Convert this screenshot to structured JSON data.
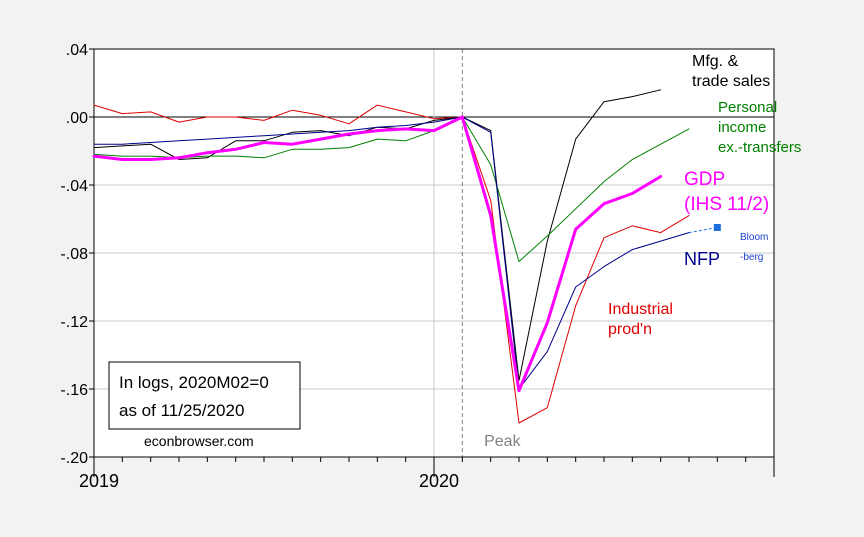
{
  "chart_data": {
    "type": "line",
    "x_unit": "month",
    "xlim": [
      "2019-01",
      "2020-12"
    ],
    "ylim": [
      -0.2,
      0.04
    ],
    "yticks": [
      0.04,
      0.0,
      -0.04,
      -0.08,
      -0.12,
      -0.16,
      -0.2
    ],
    "ytick_labels": [
      ".04",
      ".00",
      "-.04",
      "-.08",
      "-.12",
      "-.16",
      "-.20"
    ],
    "xtick_labels": [
      {
        "label": "2019",
        "at": "2019-01"
      },
      {
        "label": "2020",
        "at": "2020-01"
      }
    ],
    "grid": true,
    "peak_marker": {
      "at": "2020-02",
      "label": "Peak"
    },
    "series": [
      {
        "name_lines": [
          "Mfg. &",
          "trade sales"
        ],
        "color": "#000000",
        "width": 1,
        "x": [
          "2019-01",
          "2019-02",
          "2019-03",
          "2019-04",
          "2019-05",
          "2019-06",
          "2019-07",
          "2019-08",
          "2019-09",
          "2019-10",
          "2019-11",
          "2019-12",
          "2020-01",
          "2020-02",
          "2020-03",
          "2020-04",
          "2020-05",
          "2020-06",
          "2020-07",
          "2020-08",
          "2020-09"
        ],
        "values": [
          -0.018,
          -0.017,
          -0.016,
          -0.025,
          -0.024,
          -0.014,
          -0.014,
          -0.009,
          -0.008,
          -0.011,
          -0.006,
          -0.007,
          -0.002,
          0.0,
          -0.008,
          -0.155,
          -0.073,
          -0.013,
          0.009,
          0.012,
          0.016
        ]
      },
      {
        "name_lines": [
          "Personal",
          "income",
          "ex.-transfers"
        ],
        "color": "#008000",
        "width": 1,
        "x": [
          "2019-01",
          "2019-02",
          "2019-03",
          "2019-04",
          "2019-05",
          "2019-06",
          "2019-07",
          "2019-08",
          "2019-09",
          "2019-10",
          "2019-11",
          "2019-12",
          "2020-01",
          "2020-02",
          "2020-03",
          "2020-04",
          "2020-05",
          "2020-06",
          "2020-07",
          "2020-08",
          "2020-09",
          "2020-10"
        ],
        "values": [
          -0.022,
          -0.023,
          -0.023,
          -0.024,
          -0.023,
          -0.023,
          -0.024,
          -0.019,
          -0.019,
          -0.018,
          -0.013,
          -0.014,
          -0.008,
          0.0,
          -0.028,
          -0.085,
          -0.07,
          -0.054,
          -0.038,
          -0.025,
          -0.016,
          -0.007
        ]
      },
      {
        "name_lines": [
          "GDP",
          "(IHS 11/2)"
        ],
        "color": "#ff00ff",
        "width": 3,
        "x": [
          "2019-01",
          "2019-02",
          "2019-03",
          "2019-04",
          "2019-05",
          "2019-06",
          "2019-07",
          "2019-08",
          "2019-09",
          "2019-10",
          "2019-11",
          "2019-12",
          "2020-01",
          "2020-02",
          "2020-03",
          "2020-04",
          "2020-05",
          "2020-06",
          "2020-07",
          "2020-08",
          "2020-09"
        ],
        "values": [
          -0.023,
          -0.025,
          -0.025,
          -0.024,
          -0.021,
          -0.019,
          -0.015,
          -0.016,
          -0.013,
          -0.01,
          -0.008,
          -0.007,
          -0.008,
          0.0,
          -0.058,
          -0.161,
          -0.121,
          -0.066,
          -0.051,
          -0.045,
          -0.035
        ]
      },
      {
        "name_lines": [
          "NFP"
        ],
        "color": "#00008b",
        "width": 1,
        "x": [
          "2019-01",
          "2019-02",
          "2019-03",
          "2019-04",
          "2019-05",
          "2019-06",
          "2019-07",
          "2019-08",
          "2019-09",
          "2019-10",
          "2019-11",
          "2019-12",
          "2020-01",
          "2020-02",
          "2020-03",
          "2020-04",
          "2020-05",
          "2020-06",
          "2020-07",
          "2020-08",
          "2020-09",
          "2020-10"
        ],
        "values": [
          -0.016,
          -0.016,
          -0.015,
          -0.014,
          -0.013,
          -0.012,
          -0.011,
          -0.01,
          -0.009,
          -0.008,
          -0.006,
          -0.005,
          -0.003,
          0.0,
          -0.009,
          -0.16,
          -0.138,
          -0.1,
          -0.088,
          -0.078,
          -0.073,
          -0.068
        ]
      },
      {
        "name_lines": [
          "Industrial",
          "prod'n"
        ],
        "color": "#e00000",
        "width": 1,
        "x": [
          "2019-01",
          "2019-02",
          "2019-03",
          "2019-04",
          "2019-05",
          "2019-06",
          "2019-07",
          "2019-08",
          "2019-09",
          "2019-10",
          "2019-11",
          "2019-12",
          "2020-01",
          "2020-02",
          "2020-03",
          "2020-04",
          "2020-05",
          "2020-06",
          "2020-07",
          "2020-08",
          "2020-09",
          "2020-10"
        ],
        "values": [
          0.007,
          0.002,
          0.003,
          -0.003,
          0.0,
          0.0,
          -0.002,
          0.004,
          0.001,
          -0.004,
          0.007,
          0.003,
          -0.001,
          0.0,
          -0.049,
          -0.18,
          -0.171,
          -0.111,
          -0.071,
          -0.064,
          -0.068,
          -0.058
        ]
      }
    ],
    "bloomberg_forecast": {
      "label_lines": [
        "Bloom",
        "-berg"
      ],
      "color": "#1a6fdc",
      "from": {
        "x": "2020-10",
        "y": -0.068
      },
      "to": {
        "x": "2020-11",
        "y": -0.065
      }
    }
  },
  "annotations": {
    "note_line1": "In logs, 2020M02=0",
    "note_line2": "as of 11/25/2020",
    "source": "econbrowser.com"
  }
}
